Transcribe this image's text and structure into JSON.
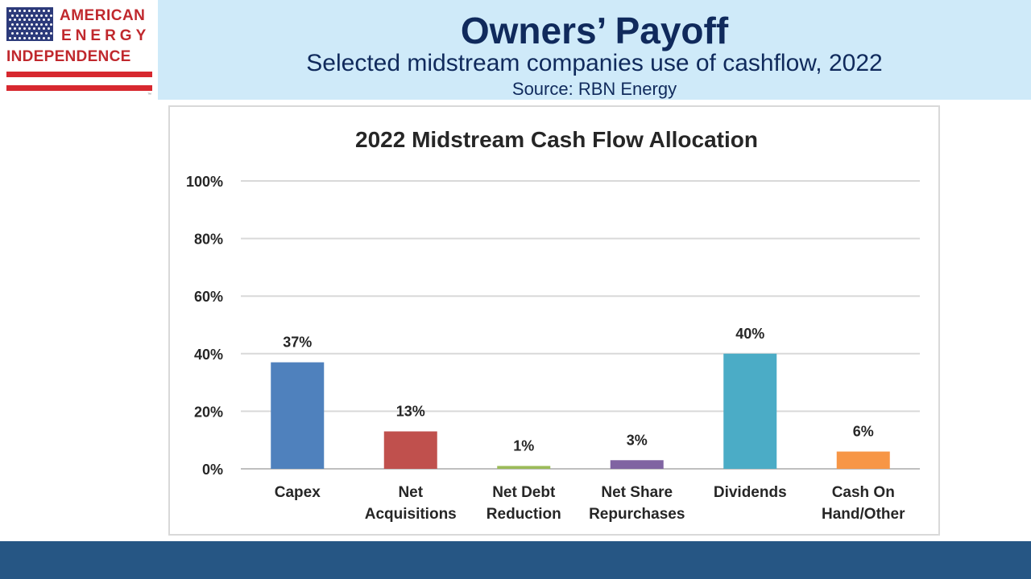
{
  "header": {
    "title": "Owners’ Payoff",
    "subtitle": "Selected midstream companies use of cashflow, 2022",
    "source": "Source: RBN Energy"
  },
  "logo": {
    "line1": "AMERICAN",
    "line2": "ENERGY",
    "line3": "INDEPENDENCE",
    "tm": "™"
  },
  "chart_data": {
    "type": "bar",
    "title": "2022 Midstream Cash Flow Allocation",
    "xlabel": "",
    "ylabel": "",
    "categories": [
      [
        "Capex"
      ],
      [
        "Net",
        "Acquisitions"
      ],
      [
        "Net Debt",
        "Reduction"
      ],
      [
        "Net Share",
        "Repurchases"
      ],
      [
        "Dividends"
      ],
      [
        "Cash On",
        "Hand/Other"
      ]
    ],
    "values": [
      37,
      13,
      1,
      3,
      40,
      6
    ],
    "data_labels": [
      "37%",
      "13%",
      "1%",
      "3%",
      "40%",
      "6%"
    ],
    "colors": [
      "#4f81bd",
      "#c0504d",
      "#9bbb59",
      "#8064a2",
      "#4bacc6",
      "#f79646"
    ],
    "ylim": [
      0,
      100
    ],
    "yticks": [
      0,
      20,
      40,
      60,
      80,
      100
    ],
    "ytick_labels": [
      "0%",
      "20%",
      "40%",
      "60%",
      "80%",
      "100%"
    ],
    "grid": true,
    "legend": "none"
  },
  "colors": {
    "header_band": "#cfeaf9",
    "title_text": "#102a5c",
    "footer_bar": "#265684",
    "logo_red": "#c0282d",
    "logo_blue": "#2c3a7a"
  }
}
